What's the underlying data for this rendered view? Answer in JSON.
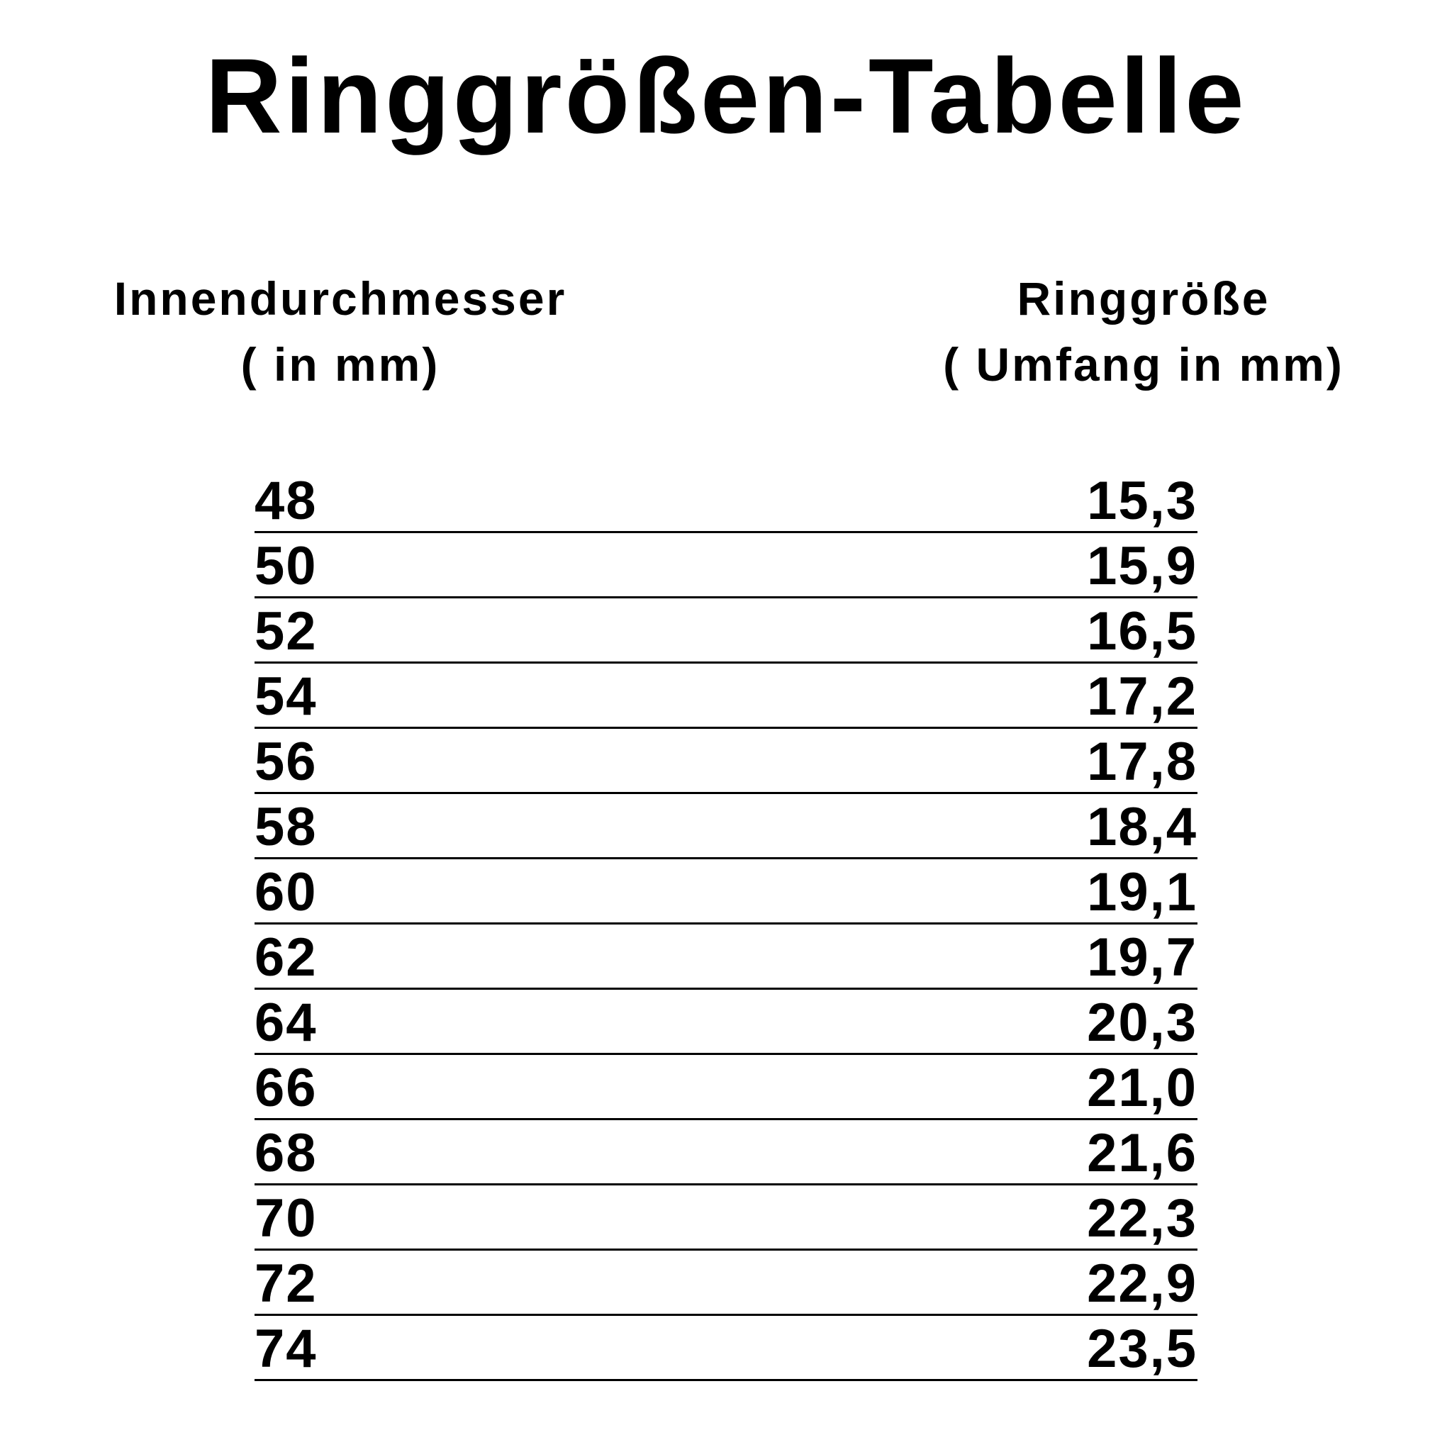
{
  "title": "Ringgrößen-Tabelle",
  "headers": {
    "left": {
      "line1": "Innendurchmesser",
      "line2": "( in mm)"
    },
    "right": {
      "line1": "Ringgröße",
      "line2": "( Umfang in mm)"
    }
  },
  "rows": [
    {
      "left": "48",
      "right": "15,3"
    },
    {
      "left": "50",
      "right": "15,9"
    },
    {
      "left": "52",
      "right": "16,5"
    },
    {
      "left": "54",
      "right": "17,2"
    },
    {
      "left": "56",
      "right": "17,8"
    },
    {
      "left": "58",
      "right": "18,4"
    },
    {
      "left": "60",
      "right": "19,1"
    },
    {
      "left": "62",
      "right": "19,7"
    },
    {
      "left": "64",
      "right": "20,3"
    },
    {
      "left": "66",
      "right": "21,0"
    },
    {
      "left": "68",
      "right": "21,6"
    },
    {
      "left": "70",
      "right": "22,3"
    },
    {
      "left": "72",
      "right": "22,9"
    },
    {
      "left": "74",
      "right": "23,5"
    }
  ]
}
